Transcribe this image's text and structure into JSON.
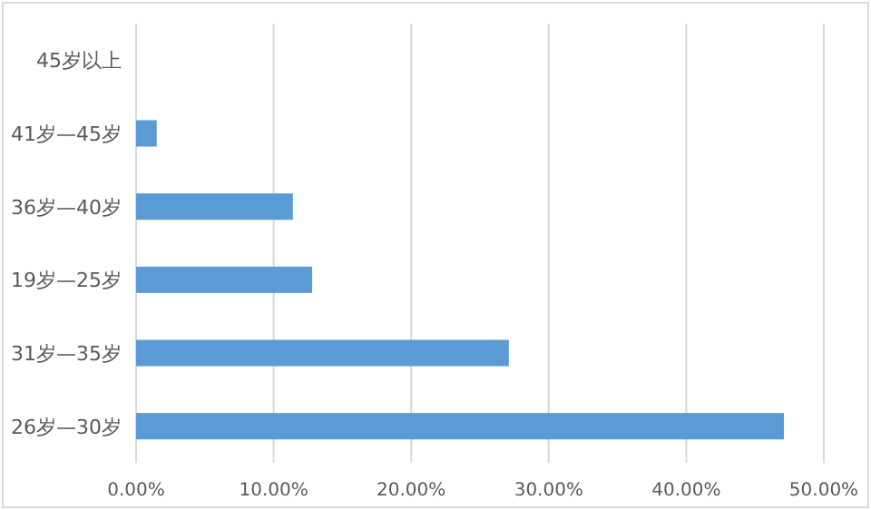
{
  "chart_data": {
    "type": "bar",
    "orientation": "horizontal",
    "categories": [
      "45岁以上",
      "41岁—45岁",
      "36岁—40岁",
      "19岁—25岁",
      "31岁—35岁",
      "26岁—30岁"
    ],
    "values": [
      0,
      1.5,
      11.4,
      12.8,
      27.1,
      47.1
    ],
    "color": "#5b9bd5",
    "xlim": [
      0,
      50
    ],
    "xticks": [
      {
        "value": 0,
        "label": "0.00%"
      },
      {
        "value": 10,
        "label": "10.00%"
      },
      {
        "value": 20,
        "label": "20.00%"
      },
      {
        "value": 30,
        "label": "30.00%"
      },
      {
        "value": 40,
        "label": "40.00%"
      },
      {
        "value": 50,
        "label": "50.00%"
      }
    ],
    "grid": "x"
  }
}
